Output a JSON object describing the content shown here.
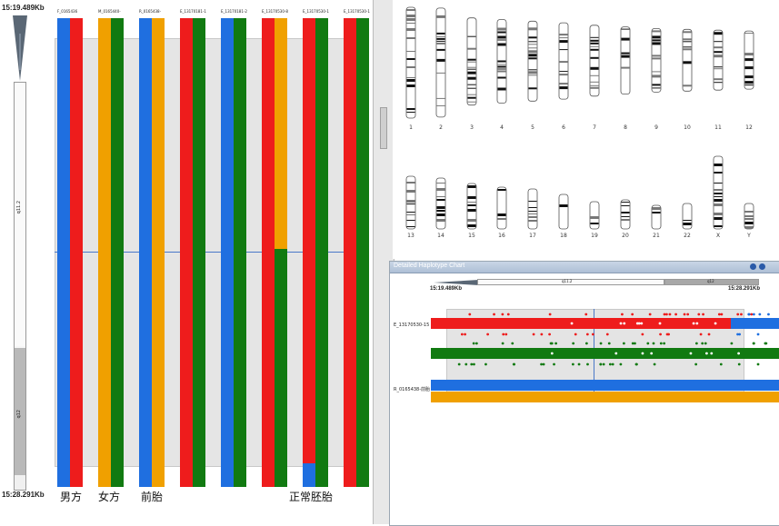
{
  "coords": {
    "top": "15:19.489Kb",
    "bottom": "15:28.291Kb"
  },
  "band_labels": {
    "upper": "q11.2",
    "lower": "q12"
  },
  "samples": [
    {
      "label": "F_0165436",
      "cols": [
        "#1f6fe0",
        "#ee1c1c"
      ],
      "switch": null
    },
    {
      "label": "M_0165440-",
      "cols": [
        "#f0a000",
        "#117a11"
      ],
      "switch": null
    },
    {
      "label": "R_0165438-",
      "cols": [
        "#1f6fe0",
        "#f0a000"
      ],
      "switch": null
    },
    {
      "label": "E_13170181-1",
      "cols": [
        "#ee1c1c",
        "#117a11"
      ],
      "switch": null
    },
    {
      "label": "E_13170181-2",
      "cols": [
        "#1f6fe0",
        "#117a11"
      ],
      "switch": null
    },
    {
      "label": "E_13170530-8",
      "cols": [
        "#ee1c1c",
        "#f0a000"
      ],
      "switch": {
        "col": 1,
        "at": 0.4917,
        "to": "#117a11"
      }
    },
    {
      "label": "E_13170530-1",
      "cols": [
        "#ee1c1c",
        "#117a11"
      ],
      "switch": {
        "col": 0,
        "at": 0.9492,
        "to": "#1f6fe0"
      }
    },
    {
      "label": "E_13170530-1",
      "cols": [
        "#ee1c1c",
        "#117a11"
      ],
      "switch": null
    }
  ],
  "bottom_labels": [
    "男方",
    "女方",
    "前胎",
    "正常胚胎"
  ],
  "chromosomes_row1": [
    "1",
    "2",
    "3",
    "4",
    "5",
    "6",
    "7",
    "8",
    "9",
    "10",
    "11",
    "12"
  ],
  "chromosomes_row2": [
    "13",
    "14",
    "15",
    "16",
    "17",
    "18",
    "19",
    "20",
    "21",
    "22",
    "X",
    "Y"
  ],
  "detail": {
    "title": "Detailed Haplotype Chart",
    "coord_left": "15:19.489Kb",
    "coord_right": "15:28.291Kb",
    "band_left": "q11.2",
    "band_right": "q12",
    "sample1_label": "E_13170530-15",
    "sample2_label": "R_0165438-前胎"
  },
  "colors": {
    "blue": "#1f6fe0",
    "red": "#ee1c1c",
    "orange": "#f0a000",
    "green": "#117a11"
  }
}
